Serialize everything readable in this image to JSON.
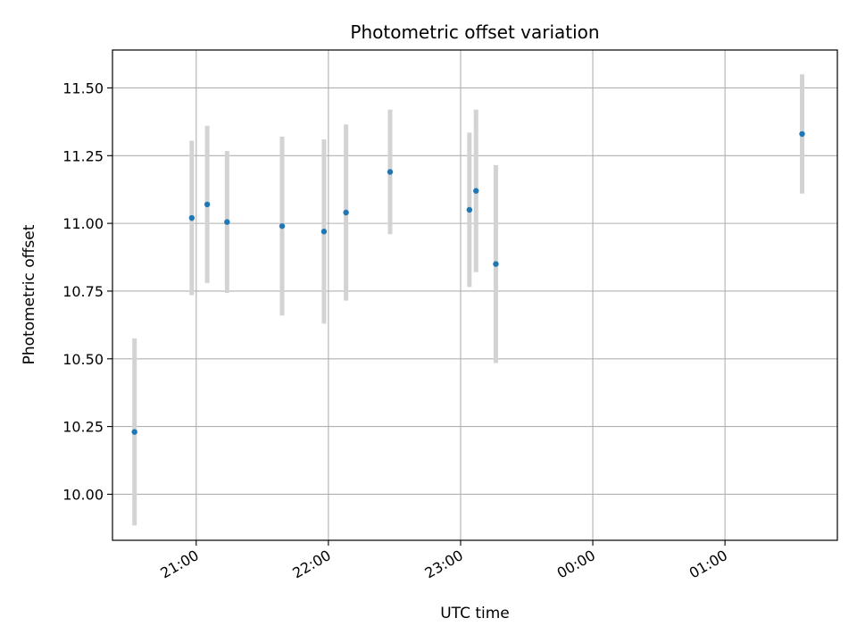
{
  "chart_data": {
    "type": "scatter",
    "title": "Photometric offset variation",
    "xlabel": "UTC time",
    "ylabel": "Photometric offset",
    "x_tick_labels": [
      "21:00",
      "22:00",
      "23:00",
      "00:00",
      "01:00"
    ],
    "y_tick_labels": [
      "10.00",
      "10.25",
      "10.50",
      "10.75",
      "11.00",
      "11.25",
      "11.50"
    ],
    "y_ticks": [
      10.0,
      10.25,
      10.5,
      10.75,
      11.0,
      11.25,
      11.5
    ],
    "xlim": [
      "20:22",
      "01:51"
    ],
    "ylim": [
      9.83,
      11.64
    ],
    "grid": true,
    "colors": {
      "points": "#1f77b4",
      "error_bars": "#d3d3d3",
      "grid": "#b0b0b0"
    },
    "series": [
      {
        "x": [
          "20:32",
          "20:58",
          "21:05",
          "21:14",
          "21:39",
          "21:58",
          "22:08",
          "22:28",
          "23:04",
          "23:07",
          "23:16",
          "01:35"
        ],
        "y": [
          10.23,
          11.02,
          11.07,
          11.005,
          10.99,
          10.97,
          11.04,
          11.19,
          11.05,
          11.12,
          10.85,
          11.33
        ],
        "yerr": [
          0.345,
          0.285,
          0.29,
          0.262,
          0.33,
          0.34,
          0.325,
          0.23,
          0.285,
          0.3,
          0.365,
          0.22
        ]
      }
    ]
  }
}
